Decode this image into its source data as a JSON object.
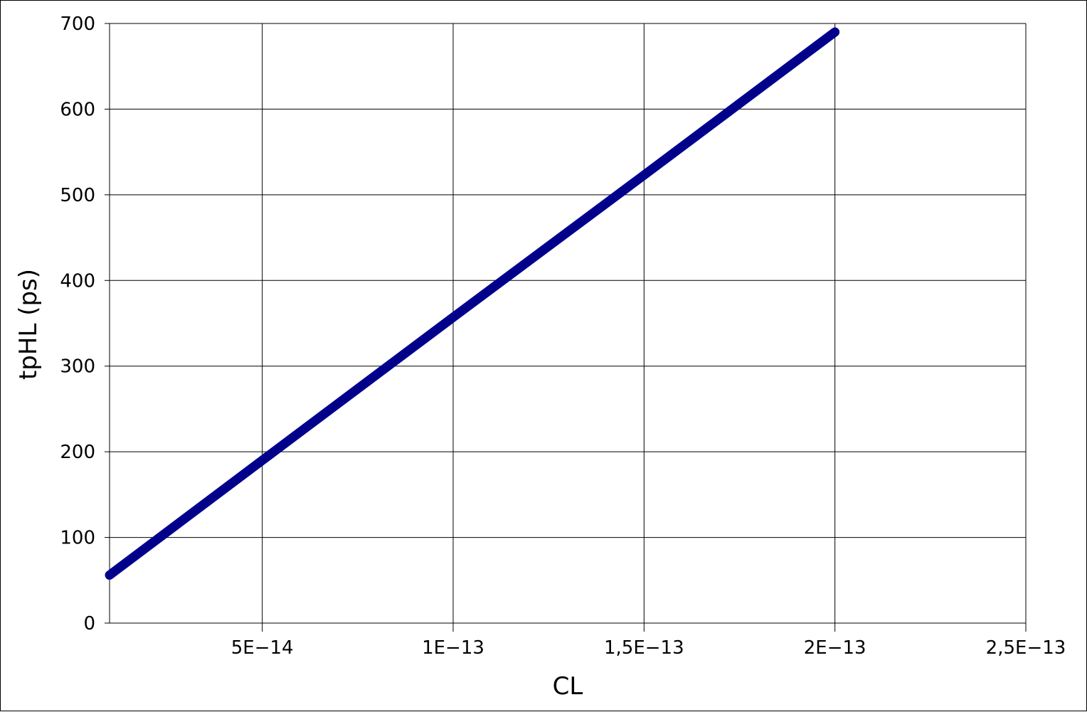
{
  "chart_data": {
    "type": "line",
    "title": "",
    "xlabel": "CL",
    "ylabel": "tpHL (ps)",
    "xlim": [
      1e-14,
      2.5e-13
    ],
    "ylim": [
      0,
      700
    ],
    "x_ticks": [
      {
        "value": 5e-14,
        "label": "5E−14"
      },
      {
        "value": 1e-13,
        "label": "1E−13"
      },
      {
        "value": 1.5e-13,
        "label": "1,5E−13"
      },
      {
        "value": 2e-13,
        "label": "2E−13"
      },
      {
        "value": 2.5e-13,
        "label": "2,5E−13"
      }
    ],
    "y_ticks": [
      {
        "value": 0,
        "label": "0"
      },
      {
        "value": 100,
        "label": "100"
      },
      {
        "value": 200,
        "label": "200"
      },
      {
        "value": 300,
        "label": "300"
      },
      {
        "value": 400,
        "label": "400"
      },
      {
        "value": 500,
        "label": "500"
      },
      {
        "value": 600,
        "label": "600"
      },
      {
        "value": 700,
        "label": "700"
      }
    ],
    "grid": true,
    "legend": "none",
    "series": [
      {
        "color": "#00008b",
        "x": [
          1e-14,
          5e-14,
          1e-13,
          1.5e-13,
          2e-13
        ],
        "y": [
          56,
          190,
          357,
          523,
          690
        ]
      }
    ]
  }
}
